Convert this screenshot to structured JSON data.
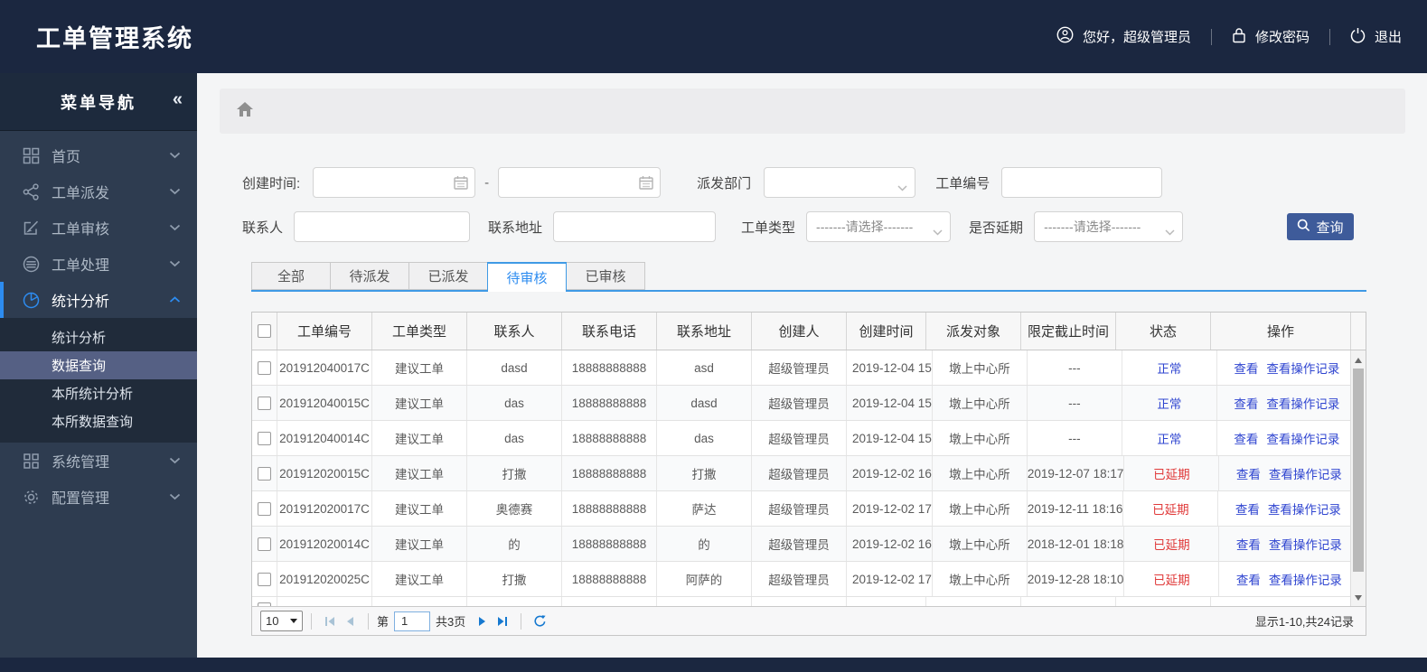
{
  "colors": {
    "header_bg": "#1b2740",
    "sidebar_bg": "#2e3c50",
    "accent_blue": "#2d8cf0",
    "link_blue": "#2f45d0",
    "danger_red": "#e03a3a",
    "search_button_bg": "#3e5b9a",
    "submenu_selected_bg": "#556084"
  },
  "app": {
    "title": "工单管理系统"
  },
  "user_bar": {
    "greeting": "您好，超级管理员",
    "change_password": "修改密码",
    "logout": "退出"
  },
  "sidebar": {
    "title": "菜单导航",
    "collapse_glyph": "«",
    "items": [
      {
        "key": "home",
        "icon": "grid-icon",
        "label": "首页",
        "expandable": true
      },
      {
        "key": "dispatch",
        "icon": "share-icon",
        "label": "工单派发",
        "expandable": true
      },
      {
        "key": "review",
        "icon": "edit-icon",
        "label": "工单审核",
        "expandable": true
      },
      {
        "key": "process",
        "icon": "stack-icon",
        "label": "工单处理",
        "expandable": true
      },
      {
        "key": "stats",
        "icon": "pie-icon",
        "label": "统计分析",
        "expandable": true,
        "expanded": true,
        "children": [
          {
            "key": "stats-analysis",
            "label": "统计分析"
          },
          {
            "key": "data-query",
            "label": "数据查询",
            "selected": true
          },
          {
            "key": "branch-stats",
            "label": "本所统计分析"
          },
          {
            "key": "branch-data-query",
            "label": "本所数据查询"
          }
        ]
      },
      {
        "key": "system",
        "icon": "grid2-icon",
        "label": "系统管理",
        "expandable": true
      },
      {
        "key": "config",
        "icon": "gear-icon",
        "label": "配置管理",
        "expandable": true
      }
    ]
  },
  "filters": {
    "create_time_label": "创建时间:",
    "range_separator": "-",
    "create_time_from_value": "",
    "create_time_to_value": "",
    "dispatch_dept_label": "派发部门",
    "dispatch_dept_value": "",
    "order_no_label": "工单编号",
    "order_no_value": "",
    "contact_label": "联系人",
    "contact_value": "",
    "address_label": "联系地址",
    "address_value": "",
    "order_type_label": "工单类型",
    "order_type_value": "-------请选择-------",
    "delay_label": "是否延期",
    "delay_value": "-------请选择-------",
    "search_button": "查询"
  },
  "tabs": [
    {
      "key": "all",
      "label": "全部",
      "active": false
    },
    {
      "key": "pending-dispatch",
      "label": "待派发",
      "active": false
    },
    {
      "key": "dispatched",
      "label": "已派发",
      "active": false
    },
    {
      "key": "pending-review",
      "label": "待审核",
      "active": true
    },
    {
      "key": "reviewed",
      "label": "已审核",
      "active": false
    }
  ],
  "table": {
    "columns": [
      "工单编号",
      "工单类型",
      "联系人",
      "联系电话",
      "联系地址",
      "创建人",
      "创建时间",
      "派发对象",
      "限定截止时间",
      "状态",
      "操作"
    ],
    "action_labels": [
      "查看",
      "查看操作记录"
    ],
    "rows": [
      {
        "order_no": "201912040017C",
        "type": "建议工单",
        "contact": "dasd",
        "phone": "18888888888",
        "address": "asd",
        "creator": "超级管理员",
        "created": "2019-12-04 15",
        "target": "墩上中心所",
        "deadline": "---",
        "status": "正常",
        "status_type": "normal"
      },
      {
        "order_no": "201912040015C",
        "type": "建议工单",
        "contact": "das",
        "phone": "18888888888",
        "address": "dasd",
        "creator": "超级管理员",
        "created": "2019-12-04 15",
        "target": "墩上中心所",
        "deadline": "---",
        "status": "正常",
        "status_type": "normal"
      },
      {
        "order_no": "201912040014C",
        "type": "建议工单",
        "contact": "das",
        "phone": "18888888888",
        "address": "das",
        "creator": "超级管理员",
        "created": "2019-12-04 15",
        "target": "墩上中心所",
        "deadline": "---",
        "status": "正常",
        "status_type": "normal"
      },
      {
        "order_no": "201912020015C",
        "type": "建议工单",
        "contact": "打撒",
        "phone": "18888888888",
        "address": "打撒",
        "creator": "超级管理员",
        "created": "2019-12-02 16",
        "target": "墩上中心所",
        "deadline": "2019-12-07 18:17",
        "status": "已延期",
        "status_type": "delayed"
      },
      {
        "order_no": "201912020017C",
        "type": "建议工单",
        "contact": "奥德赛",
        "phone": "18888888888",
        "address": "萨达",
        "creator": "超级管理员",
        "created": "2019-12-02 17",
        "target": "墩上中心所",
        "deadline": "2019-12-11 18:16",
        "status": "已延期",
        "status_type": "delayed"
      },
      {
        "order_no": "201912020014C",
        "type": "建议工单",
        "contact": "的",
        "phone": "18888888888",
        "address": "的",
        "creator": "超级管理员",
        "created": "2019-12-02 16",
        "target": "墩上中心所",
        "deadline": "2018-12-01 18:18",
        "status": "已延期",
        "status_type": "delayed"
      },
      {
        "order_no": "201912020025C",
        "type": "建议工单",
        "contact": "打撒",
        "phone": "18888888888",
        "address": "阿萨的",
        "creator": "超级管理员",
        "created": "2019-12-02 17",
        "target": "墩上中心所",
        "deadline": "2019-12-28 18:10",
        "status": "已延期",
        "status_type": "delayed"
      }
    ]
  },
  "pagination": {
    "page_size": "10",
    "page_prefix": "第",
    "current_page": "1",
    "total_pages": "共3页",
    "summary": "显示1-10,共24记录"
  }
}
